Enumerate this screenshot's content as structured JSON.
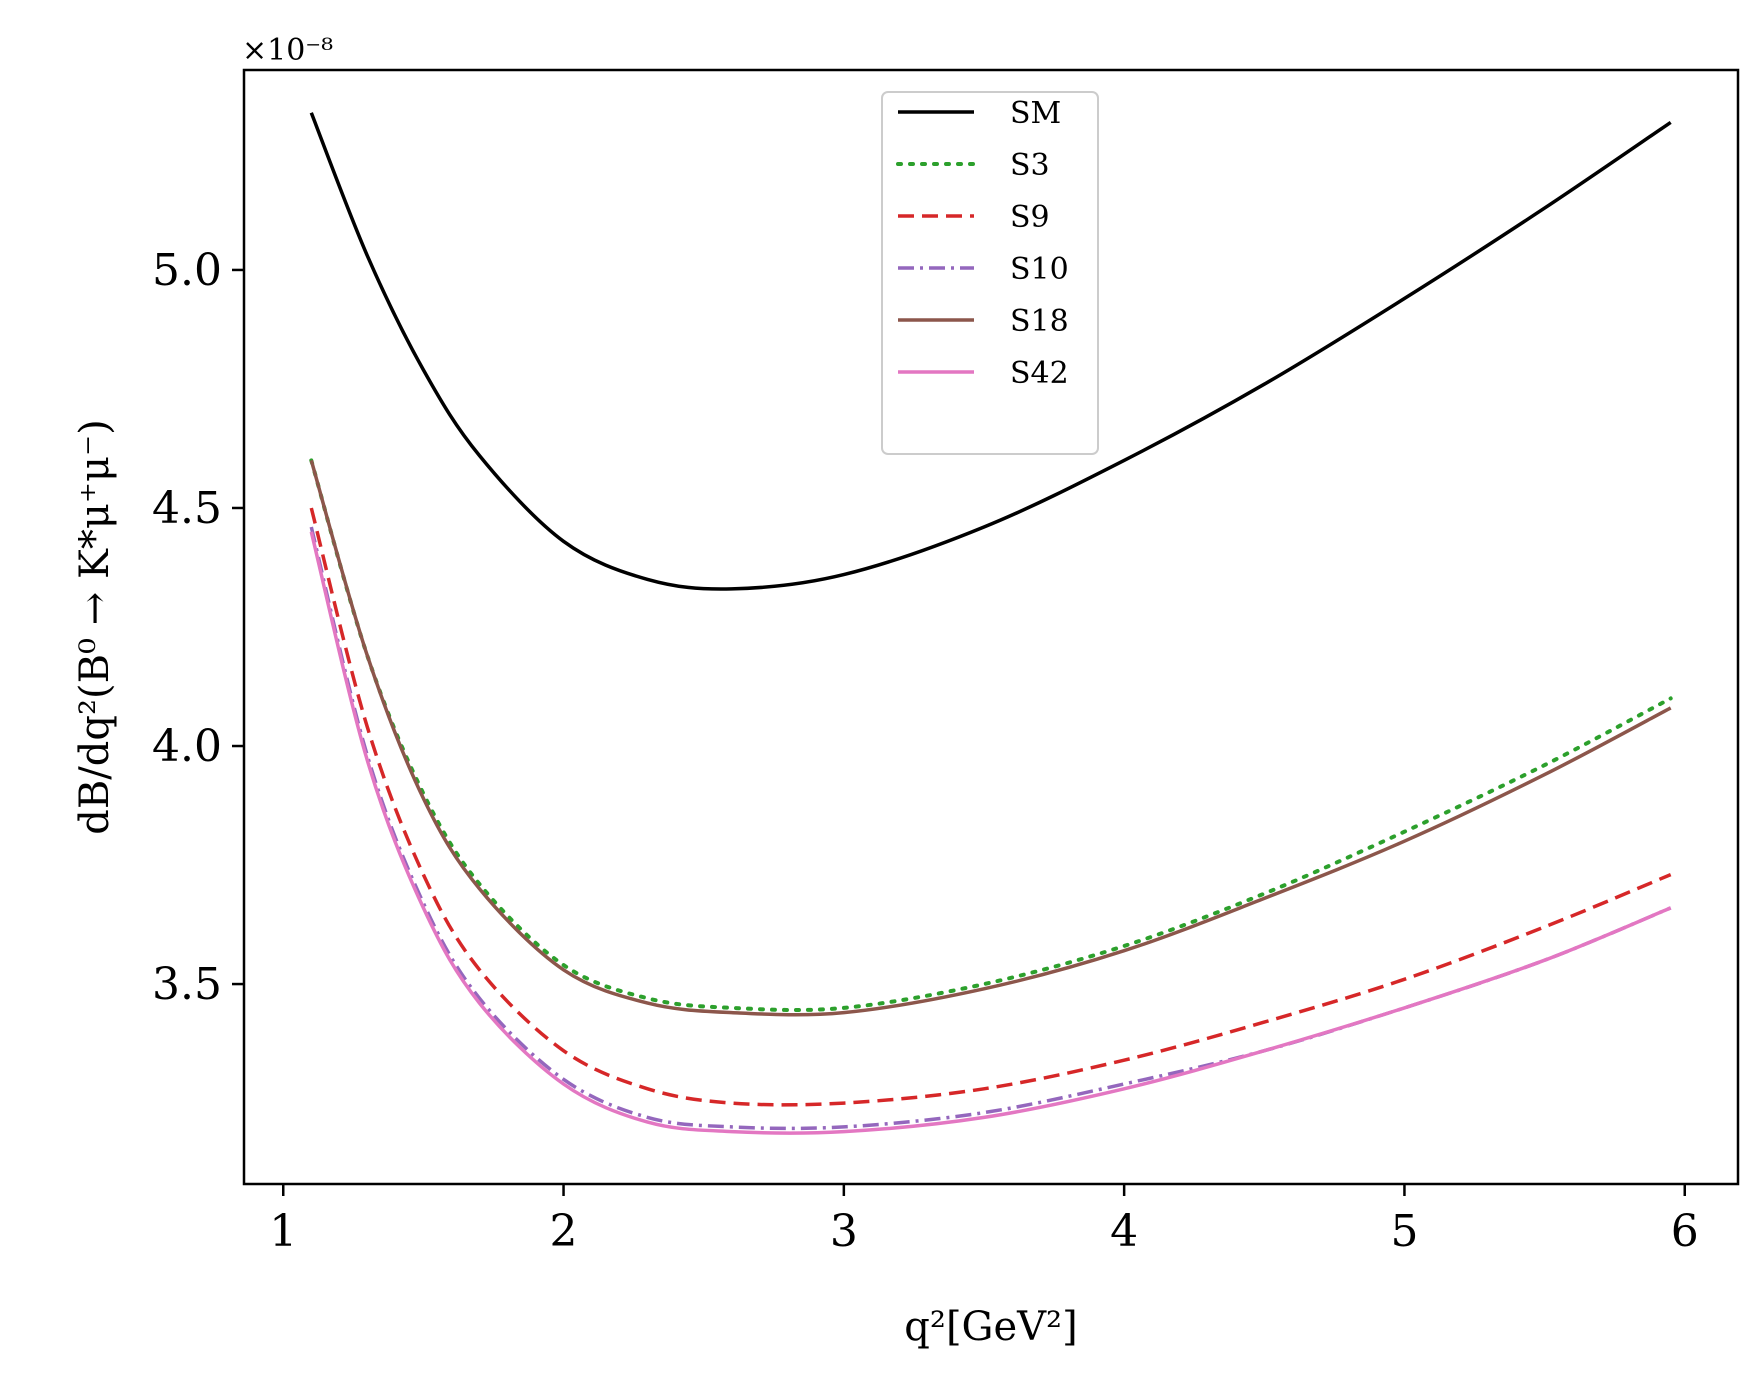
{
  "chart_data": {
    "type": "line",
    "title": "",
    "xlabel": "q²[GeV²]",
    "ylabel": "dB/dq²(B⁰ → K*μ⁺μ⁻)",
    "offset_label": "×10⁻⁸",
    "xlim": [
      0.86,
      6.19
    ],
    "ylim": [
      3.08,
      5.42
    ],
    "xticks": [
      1,
      2,
      3,
      4,
      5,
      6
    ],
    "xtick_labels": [
      "1",
      "2",
      "3",
      "4",
      "5",
      "6"
    ],
    "yticks": [
      3.5,
      4.0,
      4.5,
      5.0
    ],
    "ytick_labels": [
      "3.5",
      "4.0",
      "4.5",
      "5.0"
    ],
    "grid": false,
    "legend_position": "top-center",
    "x": [
      1.1,
      1.3,
      1.5,
      1.7,
      2.0,
      2.3,
      2.6,
      3.0,
      3.5,
      4.0,
      4.5,
      5.0,
      5.5,
      5.95
    ],
    "series": [
      {
        "name": "SM",
        "color": "#000000",
        "dash": "solid",
        "values": [
          5.33,
          5.03,
          4.79,
          4.61,
          4.43,
          4.35,
          4.33,
          4.36,
          4.46,
          4.6,
          4.76,
          4.94,
          5.13,
          5.31
        ]
      },
      {
        "name": "S3",
        "color": "#2ca02c",
        "dash": "dotted",
        "values": [
          4.6,
          4.19,
          3.9,
          3.71,
          3.54,
          3.47,
          3.45,
          3.45,
          3.5,
          3.58,
          3.69,
          3.82,
          3.96,
          4.1
        ]
      },
      {
        "name": "S9",
        "color": "#d62728",
        "dash": "dashed",
        "values": [
          4.5,
          4.04,
          3.73,
          3.53,
          3.36,
          3.28,
          3.25,
          3.25,
          3.28,
          3.34,
          3.42,
          3.51,
          3.62,
          3.73
        ]
      },
      {
        "name": "S10",
        "color": "#9467bd",
        "dash": "dashdot",
        "values": [
          4.46,
          3.98,
          3.67,
          3.47,
          3.3,
          3.22,
          3.2,
          3.2,
          3.23,
          3.29,
          3.36,
          3.45,
          3.55,
          3.66
        ]
      },
      {
        "name": "S18",
        "color": "#8c564b",
        "dash": "solid",
        "values": [
          4.6,
          4.19,
          3.89,
          3.7,
          3.53,
          3.46,
          3.44,
          3.44,
          3.49,
          3.57,
          3.68,
          3.8,
          3.94,
          4.08
        ]
      },
      {
        "name": "S42",
        "color": "#e377c2",
        "dash": "solid",
        "values": [
          4.45,
          3.97,
          3.66,
          3.46,
          3.29,
          3.21,
          3.19,
          3.19,
          3.22,
          3.28,
          3.36,
          3.45,
          3.55,
          3.66
        ]
      }
    ]
  }
}
